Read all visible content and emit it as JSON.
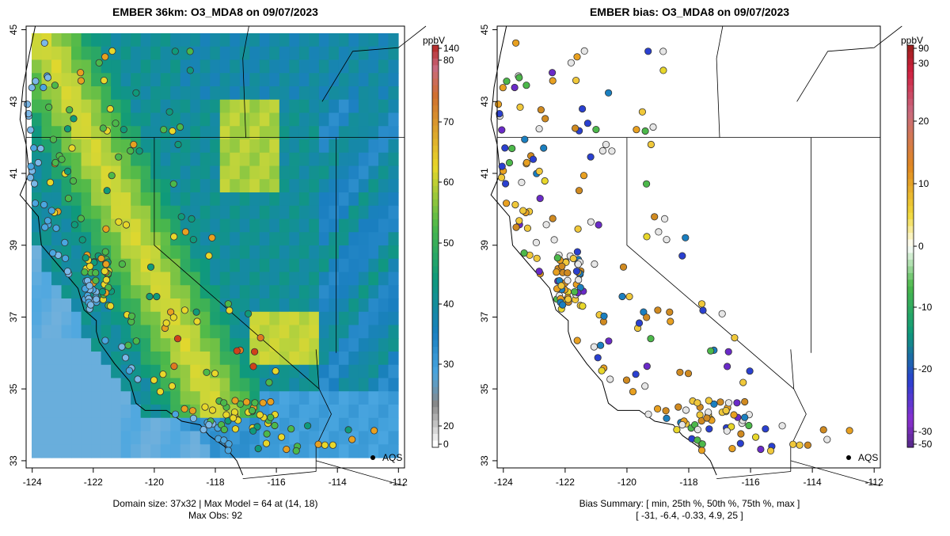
{
  "left_panel": {
    "title": "EMBER 36km: O3_MDA8 on 09/07/2023",
    "colorbar_unit": "ppbV",
    "colorbar_ticks": [
      "140",
      "80",
      "70",
      "60",
      "50",
      "40",
      "30",
      "20",
      "0"
    ],
    "footer_line1": "Domain size: 37x32 | Max Model = 64 at (14, 18)",
    "footer_line2": "Max Obs: 92",
    "aqs_label": "AQS"
  },
  "right_panel": {
    "title": "EMBER bias: O3_MDA8 on 09/07/2023",
    "colorbar_unit": "ppbV",
    "colorbar_ticks": [
      "90",
      "30",
      "20",
      "10",
      "0",
      "-10",
      "-20",
      "-30",
      "-50"
    ],
    "footer_line1": "Bias Summary: [ min, 25th %, 50th %, 75th %, max ]",
    "footer_line2": "[ -31,   -6.4,   -0.33,   4.9,   25 ]",
    "aqs_label": "AQS"
  },
  "axes": {
    "x_ticks": [
      "-124",
      "-122",
      "-120",
      "-118",
      "-116",
      "-114",
      "-112"
    ],
    "y_ticks": [
      "33",
      "35",
      "37",
      "39",
      "41",
      "43",
      "45"
    ]
  },
  "colors": {
    "model_low": "#4aa6e0",
    "model_mid": "#0f9a7a",
    "model_high": "#e8d72a",
    "obs_high": "#d0401a",
    "bias_pos": "#e8a020",
    "bias_neg": "#6a2ac8"
  },
  "chart_data": {
    "type": "map",
    "lon_range": [
      -124.2,
      -111.8
    ],
    "lat_range": [
      32.8,
      45.1
    ],
    "legend_placement": "right",
    "units": "ppbV",
    "model_colorbar": [
      0,
      20,
      30,
      40,
      50,
      60,
      70,
      80,
      140
    ],
    "bias_colorbar": [
      -50,
      -30,
      -20,
      -10,
      0,
      10,
      20,
      30,
      90
    ],
    "bias_summary": {
      "min": -31,
      "p25": -6.4,
      "p50": -0.33,
      "p75": 4.9,
      "max": 25
    },
    "max_model": 64,
    "max_obs": 92,
    "aqs_site": [
      -112.7,
      33.0
    ]
  }
}
